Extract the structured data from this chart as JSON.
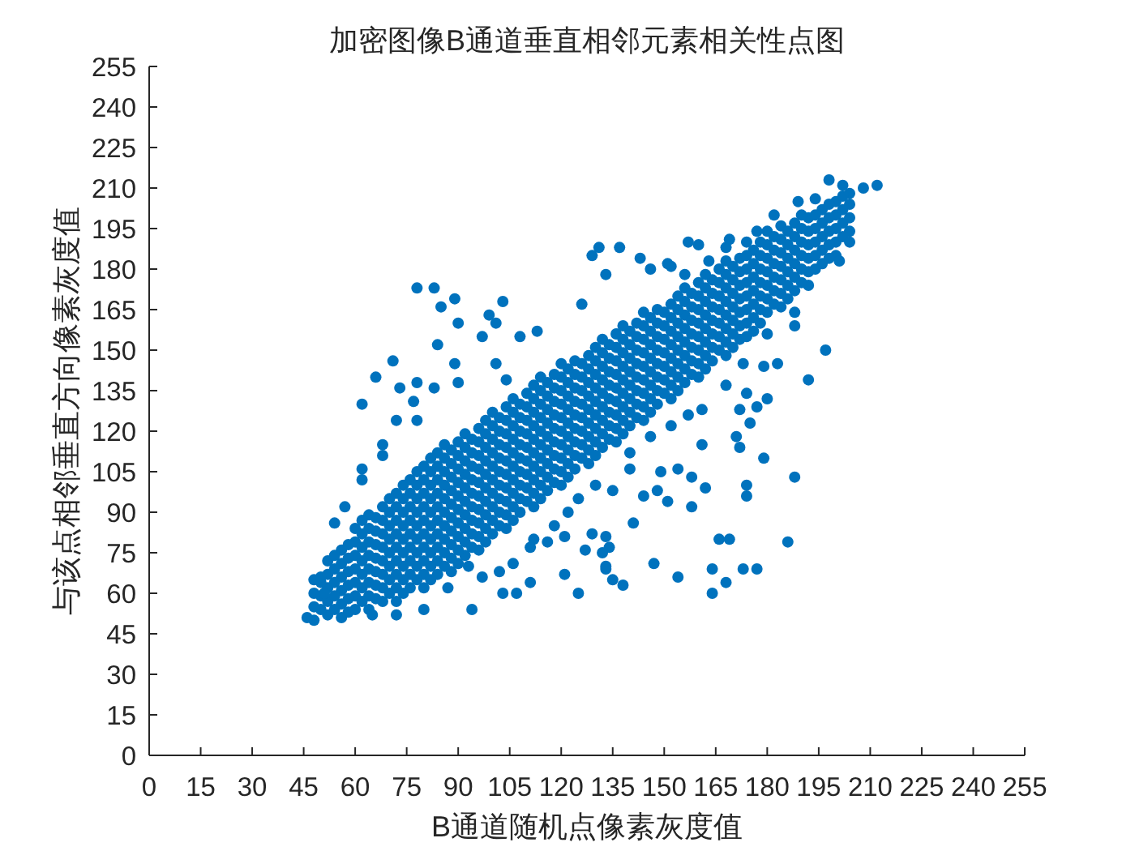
{
  "chart_data": {
    "type": "scatter",
    "title": "加密图像B通道垂直相邻元素相关性点图",
    "xlabel": "B通道随机点像素灰度值",
    "ylabel": "与该点相邻垂直方向像素灰度值",
    "xlim": [
      0,
      255
    ],
    "ylim": [
      0,
      255
    ],
    "xticks": [
      0,
      15,
      30,
      45,
      60,
      75,
      90,
      105,
      120,
      135,
      150,
      165,
      180,
      195,
      210,
      225,
      240,
      255
    ],
    "yticks": [
      0,
      15,
      30,
      45,
      60,
      75,
      90,
      105,
      120,
      135,
      150,
      165,
      180,
      195,
      210,
      225,
      240,
      255
    ],
    "color": "#0072bd",
    "marker": "circle",
    "x": [
      48,
      48,
      48,
      48,
      52,
      52,
      52,
      52,
      52,
      56,
      56,
      56,
      56,
      56,
      56,
      60,
      60,
      60,
      60,
      60,
      60,
      60,
      64,
      64,
      64,
      64,
      64,
      64,
      64,
      64,
      68,
      68,
      68,
      68,
      68,
      68,
      68,
      68,
      72,
      72,
      72,
      72,
      72,
      72,
      72,
      72,
      72,
      76,
      76,
      76,
      76,
      76,
      76,
      76,
      76,
      76,
      80,
      80,
      80,
      80,
      80,
      80,
      80,
      80,
      80,
      80,
      84,
      84,
      84,
      84,
      84,
      84,
      84,
      84,
      84,
      84,
      88,
      88,
      88,
      88,
      88,
      88,
      88,
      88,
      88,
      88,
      92,
      92,
      92,
      92,
      92,
      92,
      92,
      92,
      92,
      92,
      96,
      96,
      96,
      96,
      96,
      96,
      96,
      96,
      96,
      96,
      100,
      100,
      100,
      100,
      100,
      100,
      100,
      100,
      100,
      100,
      104,
      104,
      104,
      104,
      104,
      104,
      104,
      104,
      104,
      104,
      108,
      108,
      108,
      108,
      108,
      108,
      108,
      108,
      108,
      112,
      112,
      112,
      112,
      112,
      112,
      112,
      112,
      112,
      112,
      116,
      116,
      116,
      116,
      116,
      116,
      116,
      116,
      116,
      120,
      120,
      120,
      120,
      120,
      120,
      120,
      120,
      120,
      120,
      124,
      124,
      124,
      124,
      124,
      124,
      124,
      124,
      124,
      128,
      128,
      128,
      128,
      128,
      128,
      128,
      128,
      128,
      132,
      132,
      132,
      132,
      132,
      132,
      132,
      132,
      132,
      136,
      136,
      136,
      136,
      136,
      136,
      136,
      136,
      136,
      140,
      140,
      140,
      140,
      140,
      140,
      140,
      140,
      144,
      144,
      144,
      144,
      144,
      144,
      144,
      144,
      144,
      148,
      148,
      148,
      148,
      148,
      148,
      148,
      148,
      152,
      152,
      152,
      152,
      152,
      152,
      152,
      152,
      156,
      156,
      156,
      156,
      156,
      156,
      156,
      156,
      160,
      160,
      160,
      160,
      160,
      160,
      160,
      160,
      164,
      164,
      164,
      164,
      164,
      164,
      164,
      168,
      168,
      168,
      168,
      168,
      168,
      168,
      168,
      172,
      172,
      172,
      172,
      172,
      172,
      172,
      176,
      176,
      176,
      176,
      176,
      176,
      176,
      180,
      180,
      180,
      180,
      180,
      180,
      180,
      184,
      184,
      184,
      184,
      184,
      184,
      184,
      188,
      188,
      188,
      188,
      188,
      188,
      192,
      192,
      192,
      192,
      192,
      192,
      196,
      196,
      196,
      196,
      196,
      200,
      200,
      200,
      200,
      200,
      204,
      204,
      204,
      204,
      50,
      50,
      50,
      54,
      54,
      54,
      54,
      54,
      58,
      58,
      58,
      58,
      58,
      58,
      62,
      62,
      62,
      62,
      62,
      62,
      62,
      66,
      66,
      66,
      66,
      66,
      66,
      66,
      70,
      70,
      70,
      70,
      70,
      70,
      70,
      70,
      74,
      74,
      74,
      74,
      74,
      74,
      74,
      74,
      74,
      78,
      78,
      78,
      78,
      78,
      78,
      78,
      78,
      78,
      82,
      82,
      82,
      82,
      82,
      82,
      82,
      82,
      82,
      82,
      86,
      86,
      86,
      86,
      86,
      86,
      86,
      86,
      86,
      86,
      90,
      90,
      90,
      90,
      90,
      90,
      90,
      90,
      90,
      90,
      94,
      94,
      94,
      94,
      94,
      94,
      94,
      94,
      94,
      98,
      98,
      98,
      98,
      98,
      98,
      98,
      98,
      98,
      98,
      102,
      102,
      102,
      102,
      102,
      102,
      102,
      102,
      102,
      106,
      106,
      106,
      106,
      106,
      106,
      106,
      106,
      106,
      106,
      110,
      110,
      110,
      110,
      110,
      110,
      110,
      110,
      110,
      114,
      114,
      114,
      114,
      114,
      114,
      114,
      114,
      114,
      114,
      118,
      118,
      118,
      118,
      118,
      118,
      118,
      118,
      118,
      122,
      122,
      122,
      122,
      122,
      122,
      122,
      122,
      122,
      126,
      126,
      126,
      126,
      126,
      126,
      126,
      126,
      130,
      130,
      130,
      130,
      130,
      130,
      130,
      130,
      130,
      134,
      134,
      134,
      134,
      134,
      134,
      134,
      134,
      138,
      138,
      138,
      138,
      138,
      138,
      138,
      138,
      138,
      142,
      142,
      142,
      142,
      142,
      142,
      142,
      142,
      146,
      146,
      146,
      146,
      146,
      146,
      146,
      146,
      150,
      150,
      150,
      150,
      150,
      150,
      150,
      154,
      154,
      154,
      154,
      154,
      154,
      154,
      154,
      158,
      158,
      158,
      158,
      158,
      158,
      158,
      162,
      162,
      162,
      162,
      162,
      162,
      162,
      162,
      166,
      166,
      166,
      166,
      166,
      166,
      166,
      170,
      170,
      170,
      170,
      170,
      170,
      170,
      174,
      174,
      174,
      174,
      174,
      174,
      174,
      178,
      178,
      178,
      178,
      178,
      178,
      178,
      182,
      182,
      182,
      182,
      182,
      182,
      186,
      186,
      186,
      186,
      186,
      186,
      190,
      190,
      190,
      190,
      190,
      190,
      194,
      194,
      194,
      194,
      194,
      198,
      198,
      198,
      198,
      198,
      202,
      202,
      202,
      202,
      78,
      83,
      89,
      103,
      85,
      90,
      99,
      101,
      97,
      84,
      71,
      66,
      62,
      73,
      78,
      83,
      89,
      90,
      101,
      104,
      108,
      113,
      126,
      77,
      72,
      78,
      68,
      68,
      62,
      198,
      212,
      208,
      202,
      194,
      189,
      182,
      177,
      157,
      160,
      137,
      131,
      129,
      143,
      204,
      201,
      133,
      152,
      188,
      188,
      197,
      192,
      183,
      180,
      173,
      179,
      180,
      174,
      177,
      172,
      175,
      168,
      161,
      171,
      172,
      161,
      179,
      188,
      158,
      154,
      149,
      151,
      146,
      156,
      168,
      169,
      174,
      163,
      186,
      177,
      173,
      168,
      164,
      166,
      169,
      164,
      154,
      147,
      174,
      174,
      162,
      158,
      151,
      148,
      144,
      141,
      140,
      138,
      135,
      133,
      134,
      133,
      46,
      54,
      57,
      62,
      50,
      51,
      94,
      87,
      80,
      72,
      65,
      93,
      97,
      103,
      107,
      111,
      102,
      106,
      121,
      125,
      127,
      132,
      133,
      121,
      116,
      111,
      129,
      125,
      130,
      135,
      122,
      118,
      112,
      140,
      146,
      152,
      157
    ],
    "values": [
      50,
      55,
      60,
      65,
      52,
      57,
      62,
      67,
      72,
      51,
      56,
      61,
      66,
      71,
      76,
      54,
      59,
      64,
      69,
      74,
      79,
      84,
      54,
      59,
      64,
      69,
      74,
      79,
      84,
      89,
      57,
      62,
      67,
      72,
      77,
      82,
      87,
      92,
      57,
      62,
      67,
      72,
      77,
      82,
      87,
      92,
      97,
      62,
      67,
      72,
      77,
      82,
      87,
      92,
      97,
      102,
      62,
      67,
      72,
      77,
      82,
      87,
      92,
      97,
      102,
      107,
      67,
      72,
      77,
      82,
      87,
      92,
      97,
      102,
      107,
      112,
      68,
      73,
      78,
      83,
      88,
      93,
      98,
      103,
      108,
      113,
      74,
      79,
      84,
      89,
      94,
      99,
      104,
      109,
      114,
      119,
      76,
      81,
      86,
      91,
      96,
      101,
      106,
      111,
      116,
      121,
      82,
      87,
      92,
      97,
      102,
      107,
      112,
      117,
      122,
      127,
      84,
      89,
      94,
      99,
      104,
      109,
      114,
      119,
      124,
      129,
      90,
      95,
      100,
      105,
      110,
      115,
      120,
      125,
      130,
      92,
      97,
      102,
      107,
      112,
      117,
      122,
      127,
      132,
      137,
      98,
      103,
      108,
      113,
      118,
      123,
      128,
      133,
      138,
      100,
      105,
      110,
      115,
      120,
      125,
      130,
      135,
      140,
      145,
      106,
      111,
      116,
      121,
      126,
      131,
      136,
      141,
      146,
      108,
      113,
      118,
      123,
      128,
      133,
      138,
      143,
      148,
      114,
      119,
      124,
      129,
      134,
      139,
      144,
      149,
      154,
      116,
      121,
      126,
      131,
      136,
      141,
      146,
      151,
      156,
      122,
      127,
      132,
      137,
      142,
      147,
      152,
      157,
      124,
      129,
      134,
      139,
      144,
      149,
      154,
      159,
      164,
      130,
      135,
      140,
      145,
      150,
      155,
      160,
      165,
      132,
      137,
      142,
      147,
      152,
      157,
      162,
      167,
      138,
      143,
      148,
      153,
      158,
      163,
      168,
      173,
      140,
      145,
      150,
      155,
      160,
      165,
      170,
      175,
      146,
      151,
      156,
      161,
      166,
      171,
      176,
      148,
      153,
      158,
      163,
      168,
      173,
      178,
      183,
      154,
      159,
      164,
      169,
      174,
      179,
      184,
      157,
      162,
      167,
      172,
      177,
      182,
      187,
      164,
      169,
      174,
      179,
      184,
      189,
      194,
      166,
      171,
      176,
      181,
      186,
      191,
      196,
      172,
      177,
      182,
      187,
      192,
      197,
      174,
      179,
      184,
      189,
      194,
      199,
      182,
      187,
      192,
      197,
      202,
      185,
      190,
      195,
      200,
      205,
      194,
      199,
      204,
      208,
      54,
      59,
      64,
      54,
      59,
      64,
      69,
      74,
      53,
      58,
      63,
      68,
      73,
      78,
      57,
      62,
      67,
      72,
      77,
      82,
      87,
      58,
      63,
      68,
      73,
      78,
      83,
      88,
      60,
      65,
      70,
      75,
      80,
      85,
      90,
      95,
      60,
      65,
      70,
      75,
      80,
      85,
      90,
      95,
      100,
      65,
      70,
      75,
      80,
      85,
      90,
      95,
      100,
      105,
      65,
      70,
      75,
      80,
      85,
      90,
      95,
      100,
      105,
      110,
      70,
      75,
      80,
      85,
      90,
      95,
      100,
      105,
      110,
      115,
      71,
      76,
      81,
      86,
      91,
      96,
      101,
      106,
      111,
      116,
      77,
      82,
      87,
      92,
      97,
      102,
      107,
      112,
      117,
      79,
      84,
      89,
      94,
      99,
      104,
      109,
      114,
      119,
      124,
      85,
      90,
      95,
      100,
      105,
      110,
      115,
      120,
      125,
      87,
      92,
      97,
      102,
      107,
      112,
      117,
      122,
      127,
      132,
      94,
      99,
      104,
      109,
      114,
      119,
      124,
      129,
      134,
      95,
      100,
      105,
      110,
      115,
      120,
      125,
      130,
      135,
      140,
      101,
      106,
      111,
      116,
      121,
      126,
      131,
      136,
      141,
      103,
      108,
      113,
      118,
      123,
      128,
      133,
      138,
      143,
      110,
      115,
      120,
      125,
      130,
      135,
      140,
      145,
      111,
      116,
      121,
      126,
      131,
      136,
      141,
      146,
      151,
      117,
      122,
      127,
      132,
      137,
      142,
      147,
      152,
      119,
      124,
      129,
      134,
      139,
      144,
      149,
      154,
      159,
      125,
      130,
      135,
      140,
      145,
      150,
      155,
      160,
      127,
      132,
      137,
      142,
      147,
      152,
      157,
      162,
      134,
      139,
      144,
      149,
      154,
      159,
      164,
      135,
      140,
      145,
      150,
      155,
      160,
      165,
      170,
      141,
      146,
      151,
      156,
      161,
      166,
      171,
      143,
      148,
      153,
      158,
      163,
      168,
      173,
      178,
      150,
      155,
      160,
      165,
      170,
      175,
      180,
      151,
      156,
      161,
      166,
      171,
      176,
      181,
      155,
      160,
      165,
      170,
      175,
      180,
      185,
      160,
      165,
      170,
      175,
      180,
      185,
      190,
      167,
      172,
      177,
      182,
      187,
      192,
      169,
      174,
      179,
      184,
      189,
      194,
      175,
      180,
      185,
      190,
      195,
      200,
      180,
      185,
      190,
      195,
      200,
      184,
      189,
      194,
      199,
      204,
      192,
      197,
      202,
      207,
      173,
      173,
      169,
      168,
      166,
      160,
      163,
      160,
      155,
      152,
      146,
      140,
      130,
      136,
      138,
      136,
      145,
      138,
      145,
      139,
      155,
      157,
      167,
      131,
      124,
      124,
      115,
      111,
      106,
      213,
      211,
      210,
      211,
      206,
      205,
      200,
      194,
      190,
      189,
      188,
      188,
      185,
      184,
      190,
      183,
      178,
      181,
      164,
      159,
      150,
      139,
      145,
      156,
      145,
      144,
      132,
      134,
      129,
      128,
      123,
      137,
      128,
      118,
      114,
      115,
      110,
      103,
      103,
      106,
      105,
      182,
      180,
      178,
      188,
      191,
      190,
      183,
      79,
      69,
      69,
      64,
      60,
      80,
      80,
      69,
      66,
      71,
      100,
      96,
      99,
      92,
      94,
      98,
      96,
      86,
      106,
      63,
      65,
      69,
      77,
      81,
      51,
      86,
      92,
      102,
      66,
      60,
      54,
      62,
      54,
      52,
      52,
      70,
      66,
      60,
      60,
      64,
      68,
      71,
      67,
      60,
      76,
      75,
      70,
      81,
      79,
      77,
      82,
      95,
      100,
      98,
      90,
      85,
      80,
      112,
      118,
      122,
      126
    ]
  }
}
